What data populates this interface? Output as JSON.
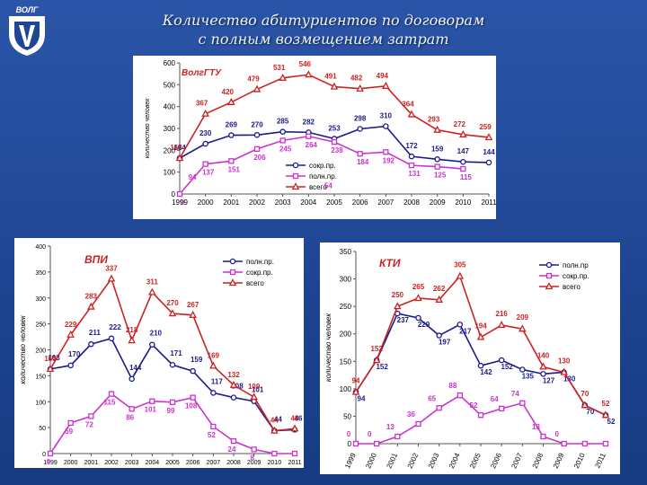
{
  "slide": {
    "title_line1": "Количество абитуриентов по договорам",
    "title_line2": "с полным возмещением затрат",
    "logo_text": "ВОЛГ"
  },
  "chart_data": [
    {
      "id": "top",
      "type": "line",
      "title": "ВолгГТУ",
      "xlabel": "",
      "ylabel": "количество человек",
      "ylim": [
        0,
        600
      ],
      "yticks": [
        0,
        100,
        200,
        300,
        400,
        500,
        600
      ],
      "categories": [
        "1999",
        "2000",
        "2001",
        "2002",
        "2003",
        "2004",
        "2005",
        "2006",
        "2007",
        "2008",
        "2009",
        "2010",
        "2011"
      ],
      "series": [
        {
          "name": "сокр.пр.",
          "color": "#1a1a8c",
          "marker": "circle",
          "values": [
            164,
            230,
            269,
            270,
            285,
            282,
            253,
            298,
            310,
            172,
            159,
            147,
            144
          ],
          "labels": [
            "164",
            "230",
            "269",
            "270",
            "285",
            "282",
            "253",
            "298",
            "310",
            "172",
            "159",
            "147",
            "144"
          ]
        },
        {
          "name": "полн.пр.",
          "color": "#cc33cc",
          "marker": "square",
          "values": [
            0,
            137,
            151,
            206,
            245,
            264,
            238,
            184,
            192,
            131,
            125,
            115,
            null
          ],
          "labels": [
            "0",
            "137",
            "151",
            "206",
            "245",
            "264",
            "238",
            "184",
            "192",
            "131",
            "125",
            "115",
            ""
          ]
        },
        {
          "name": "всего",
          "color": "#cc2222",
          "marker": "triangle",
          "values": [
            164,
            367,
            420,
            479,
            531,
            546,
            491,
            482,
            494,
            364,
            293,
            272,
            259
          ],
          "labels": [
            "164",
            "367",
            "420",
            "479",
            "531",
            "546",
            "491",
            "482",
            "494",
            "364",
            "293",
            "272",
            "259"
          ]
        }
      ],
      "extra_labels": [
        "94",
        "54"
      ]
    },
    {
      "id": "left",
      "type": "line",
      "title": "ВПИ",
      "xlabel": "",
      "ylabel": "количество человек",
      "ylim": [
        0,
        400
      ],
      "yticks": [
        0,
        50,
        100,
        150,
        200,
        250,
        300,
        350,
        400
      ],
      "categories": [
        "1999",
        "2000",
        "2001",
        "2002",
        "2003",
        "2004",
        "2005",
        "2006",
        "2007",
        "2008",
        "2009",
        "2010",
        "2011"
      ],
      "series": [
        {
          "name": "полн.пр.",
          "color": "#1a1a8c",
          "marker": "circle",
          "values": [
            163,
            170,
            211,
            222,
            144,
            210,
            171,
            159,
            117,
            108,
            101,
            44,
            46
          ],
          "labels": [
            "163",
            "170",
            "211",
            "222",
            "144",
            "210",
            "171",
            "159",
            "117",
            "108",
            "101",
            "44",
            "46"
          ]
        },
        {
          "name": "сокр.пр.",
          "color": "#cc33cc",
          "marker": "square",
          "values": [
            0,
            59,
            72,
            115,
            86,
            101,
            99,
            108,
            52,
            24,
            8,
            0,
            0
          ],
          "labels": [
            "0",
            "59",
            "72",
            "115",
            "86",
            "101",
            "99",
            "108",
            "52",
            "24",
            "8",
            "",
            ""
          ]
        },
        {
          "name": "всего",
          "color": "#cc2222",
          "marker": "triangle",
          "values": [
            163,
            229,
            283,
            337,
            218,
            311,
            270,
            267,
            169,
            132,
            109,
            44,
            48
          ],
          "labels": [
            "163",
            "229",
            "283",
            "337",
            "218",
            "311",
            "270",
            "267",
            "169",
            "132",
            "109",
            "44",
            "48"
          ]
        }
      ]
    },
    {
      "id": "right",
      "type": "line",
      "title": "КТИ",
      "xlabel": "",
      "ylabel": "количество человек",
      "ylim": [
        0,
        350
      ],
      "yticks": [
        0,
        50,
        100,
        150,
        200,
        250,
        300,
        350
      ],
      "categories": [
        "1999",
        "2000",
        "2001",
        "2002",
        "2003",
        "2004",
        "2005",
        "2006",
        "2007",
        "2008",
        "2009",
        "2010",
        "2011"
      ],
      "series": [
        {
          "name": "полн.пр",
          "color": "#1a1a8c",
          "marker": "circle",
          "values": [
            94,
            152,
            237,
            229,
            197,
            217,
            142,
            152,
            135,
            127,
            130,
            70,
            52
          ],
          "labels": [
            "94",
            "152",
            "237",
            "229",
            "197",
            "217",
            "142",
            "152",
            "135",
            "127",
            "130",
            "70",
            "52"
          ]
        },
        {
          "name": "сокр.пр.",
          "color": "#cc33cc",
          "marker": "square",
          "values": [
            0,
            0,
            13,
            36,
            65,
            88,
            52,
            64,
            74,
            13,
            0,
            0,
            0
          ],
          "labels": [
            "0",
            "0",
            "13",
            "36",
            "65",
            "88",
            "52",
            "64",
            "74",
            "13",
            "0",
            "",
            ""
          ]
        },
        {
          "name": "всего",
          "color": "#cc2222",
          "marker": "triangle",
          "values": [
            94,
            152,
            250,
            265,
            262,
            305,
            194,
            216,
            209,
            140,
            130,
            70,
            52
          ],
          "labels": [
            "94",
            "152",
            "250",
            "265",
            "262",
            "305",
            "194",
            "216",
            "209",
            "140",
            "130",
            "70",
            "52"
          ]
        }
      ]
    }
  ]
}
